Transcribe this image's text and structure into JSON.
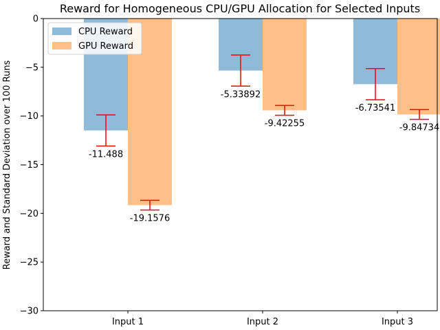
{
  "chart_data": {
    "type": "bar",
    "title": "Reward for Homogeneous CPU/GPU Allocation for Selected Inputs",
    "xlabel": "",
    "ylabel": "Reward and Standard Deviation over 100 Runs",
    "categories": [
      "Input 1",
      "Input 2",
      "Input 3"
    ],
    "ylim": [
      -30,
      0
    ],
    "yticks": [
      0,
      -5,
      -10,
      -15,
      -20,
      -25,
      -30
    ],
    "ytick_labels": [
      "0",
      "−5",
      "−10",
      "−15",
      "−20",
      "−25",
      "−30"
    ],
    "legend_position": "top-left",
    "grid": false,
    "series": [
      {
        "name": "CPU Reward",
        "color": "#8fbbd9",
        "values": [
          -11.488,
          -5.33892,
          -6.73541
        ],
        "errors": [
          1.6,
          1.6,
          1.6
        ],
        "labels": [
          "-11.488",
          "-5.33892",
          "-6.73541"
        ]
      },
      {
        "name": "GPU Reward",
        "color": "#ffbf86",
        "values": [
          -19.1576,
          -9.42255,
          -9.84734
        ],
        "errors": [
          0.5,
          0.5,
          0.5
        ],
        "labels": [
          "-19.1576",
          "-9.42255",
          "-9.84734"
        ]
      }
    ],
    "error_color": "#ff0000"
  }
}
